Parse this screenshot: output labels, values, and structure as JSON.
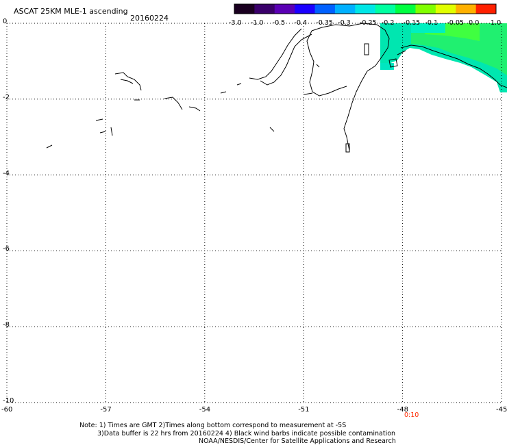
{
  "title": "ASCAT 25KM MLE-1 ascending",
  "date": "20160224",
  "colorbar": {
    "labels": [
      "-3.0",
      "-1.0",
      "-0.5",
      "-0.4",
      "-0.35",
      "-0.3",
      "-0.25",
      "-0.2",
      "-0.15",
      "-0.1",
      "-0.05",
      "0.0",
      "1.0"
    ],
    "colors": [
      "#1a0020",
      "#3a006a",
      "#5a00b4",
      "#1a00ff",
      "#0060ff",
      "#00b0ff",
      "#00e6e6",
      "#00ffa0",
      "#00ff40",
      "#80ff00",
      "#e0ff00",
      "#ffb000",
      "#ff2000"
    ]
  },
  "axes": {
    "x_ticks": [
      "-60",
      "-57",
      "-54",
      "-51",
      "-48",
      "-45"
    ],
    "y_ticks": [
      "0",
      "-2",
      "-4",
      "-6",
      "-8",
      "-10"
    ]
  },
  "time_label": "0:10",
  "notes": {
    "line1": "Note: 1) Times are GMT 2)Times along bottom correspond to measurement at -5S",
    "line2": "3)Data buffer is 22 hrs from 20160224 4) Black wind barbs indicate possible contamination",
    "line3": "NOAA/NESDIS/Center for Satellite Applications and Research"
  }
}
